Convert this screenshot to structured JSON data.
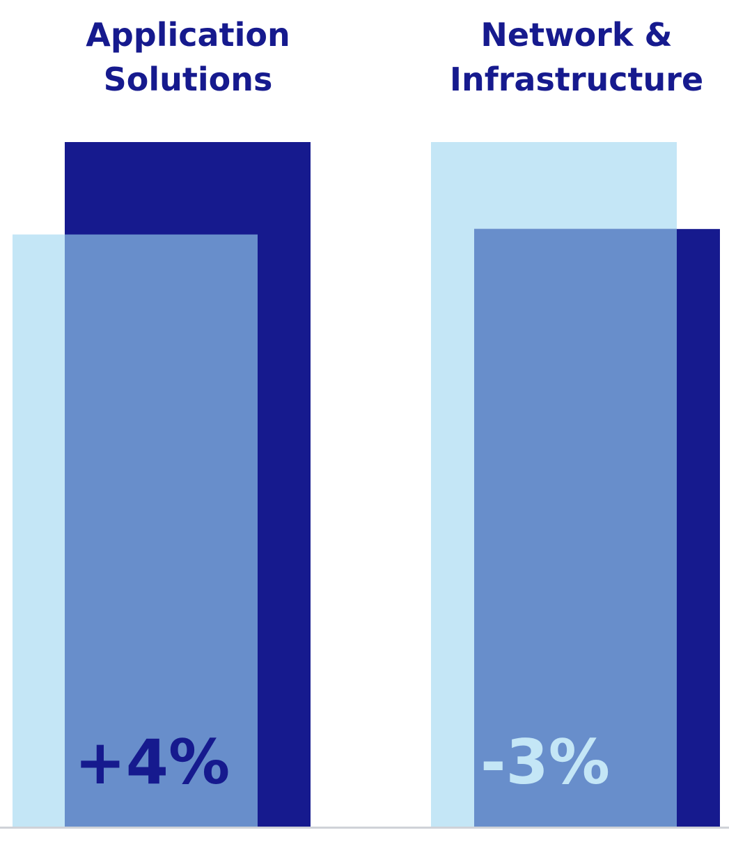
{
  "chart_data": {
    "type": "bar",
    "categories": [
      {
        "title_lines": [
          "Application",
          "Solutions"
        ],
        "change_label": "+4%",
        "change_color": "#161a8e",
        "bars": [
          {
            "key": "light",
            "value": 86.5
          },
          {
            "key": "dark",
            "value": 100
          }
        ]
      },
      {
        "title_lines": [
          "Network &",
          "Infrastructure"
        ],
        "change_label": "-3%",
        "change_color": "#c4e6f6",
        "bars": [
          {
            "key": "light",
            "value": 100
          },
          {
            "key": "dark",
            "value": 87.3
          }
        ]
      }
    ],
    "ylim": [
      0,
      100
    ],
    "grid": false,
    "legend": "none"
  },
  "colors": {
    "title": "#161a8e",
    "light_bar": "#c4e6f6",
    "dark_bar": "#161a8e",
    "overlap": "#688ecb",
    "baseline": "#cfd2d8"
  }
}
